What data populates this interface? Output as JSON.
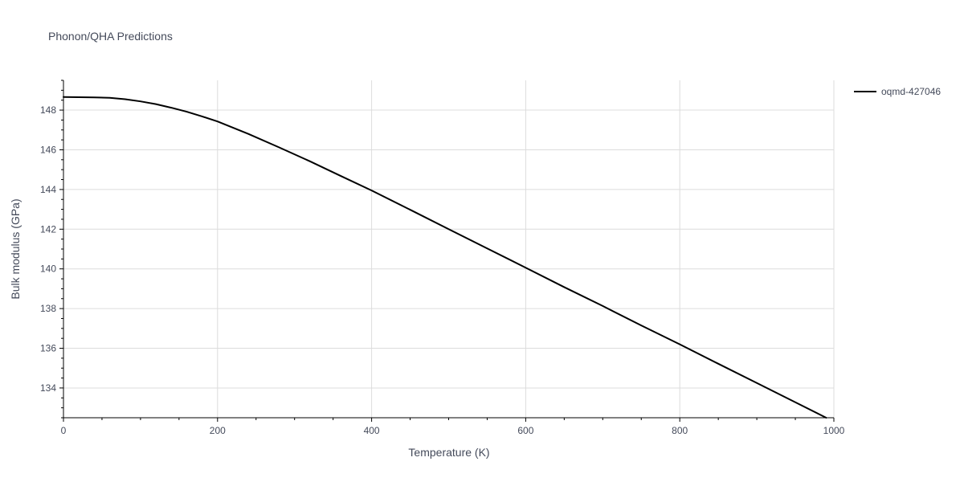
{
  "chart_data": {
    "type": "line",
    "title": "Phonon/QHA Predictions",
    "xlabel": "Temperature (K)",
    "ylabel": "Bulk modulus (GPa)",
    "xlim": [
      0,
      1000
    ],
    "ylim": [
      132.5,
      149.5
    ],
    "x_ticks": [
      0,
      200,
      400,
      600,
      800,
      1000
    ],
    "y_ticks": [
      134,
      136,
      138,
      140,
      142,
      144,
      146,
      148
    ],
    "grid": true,
    "legend_position": "top-right",
    "series": [
      {
        "name": "oqmd-427046",
        "color": "#000000",
        "x": [
          0,
          20,
          40,
          60,
          80,
          100,
          120,
          140,
          160,
          180,
          200,
          240,
          280,
          320,
          360,
          400,
          450,
          500,
          550,
          600,
          650,
          700,
          750,
          800,
          850,
          900,
          950,
          990
        ],
        "y": [
          148.66,
          148.65,
          148.64,
          148.62,
          148.55,
          148.44,
          148.3,
          148.12,
          147.92,
          147.68,
          147.43,
          146.8,
          146.12,
          145.42,
          144.68,
          143.95,
          142.98,
          142.0,
          141.03,
          140.06,
          139.08,
          138.13,
          137.15,
          136.2,
          135.22,
          134.25,
          133.28,
          132.5
        ]
      }
    ]
  }
}
